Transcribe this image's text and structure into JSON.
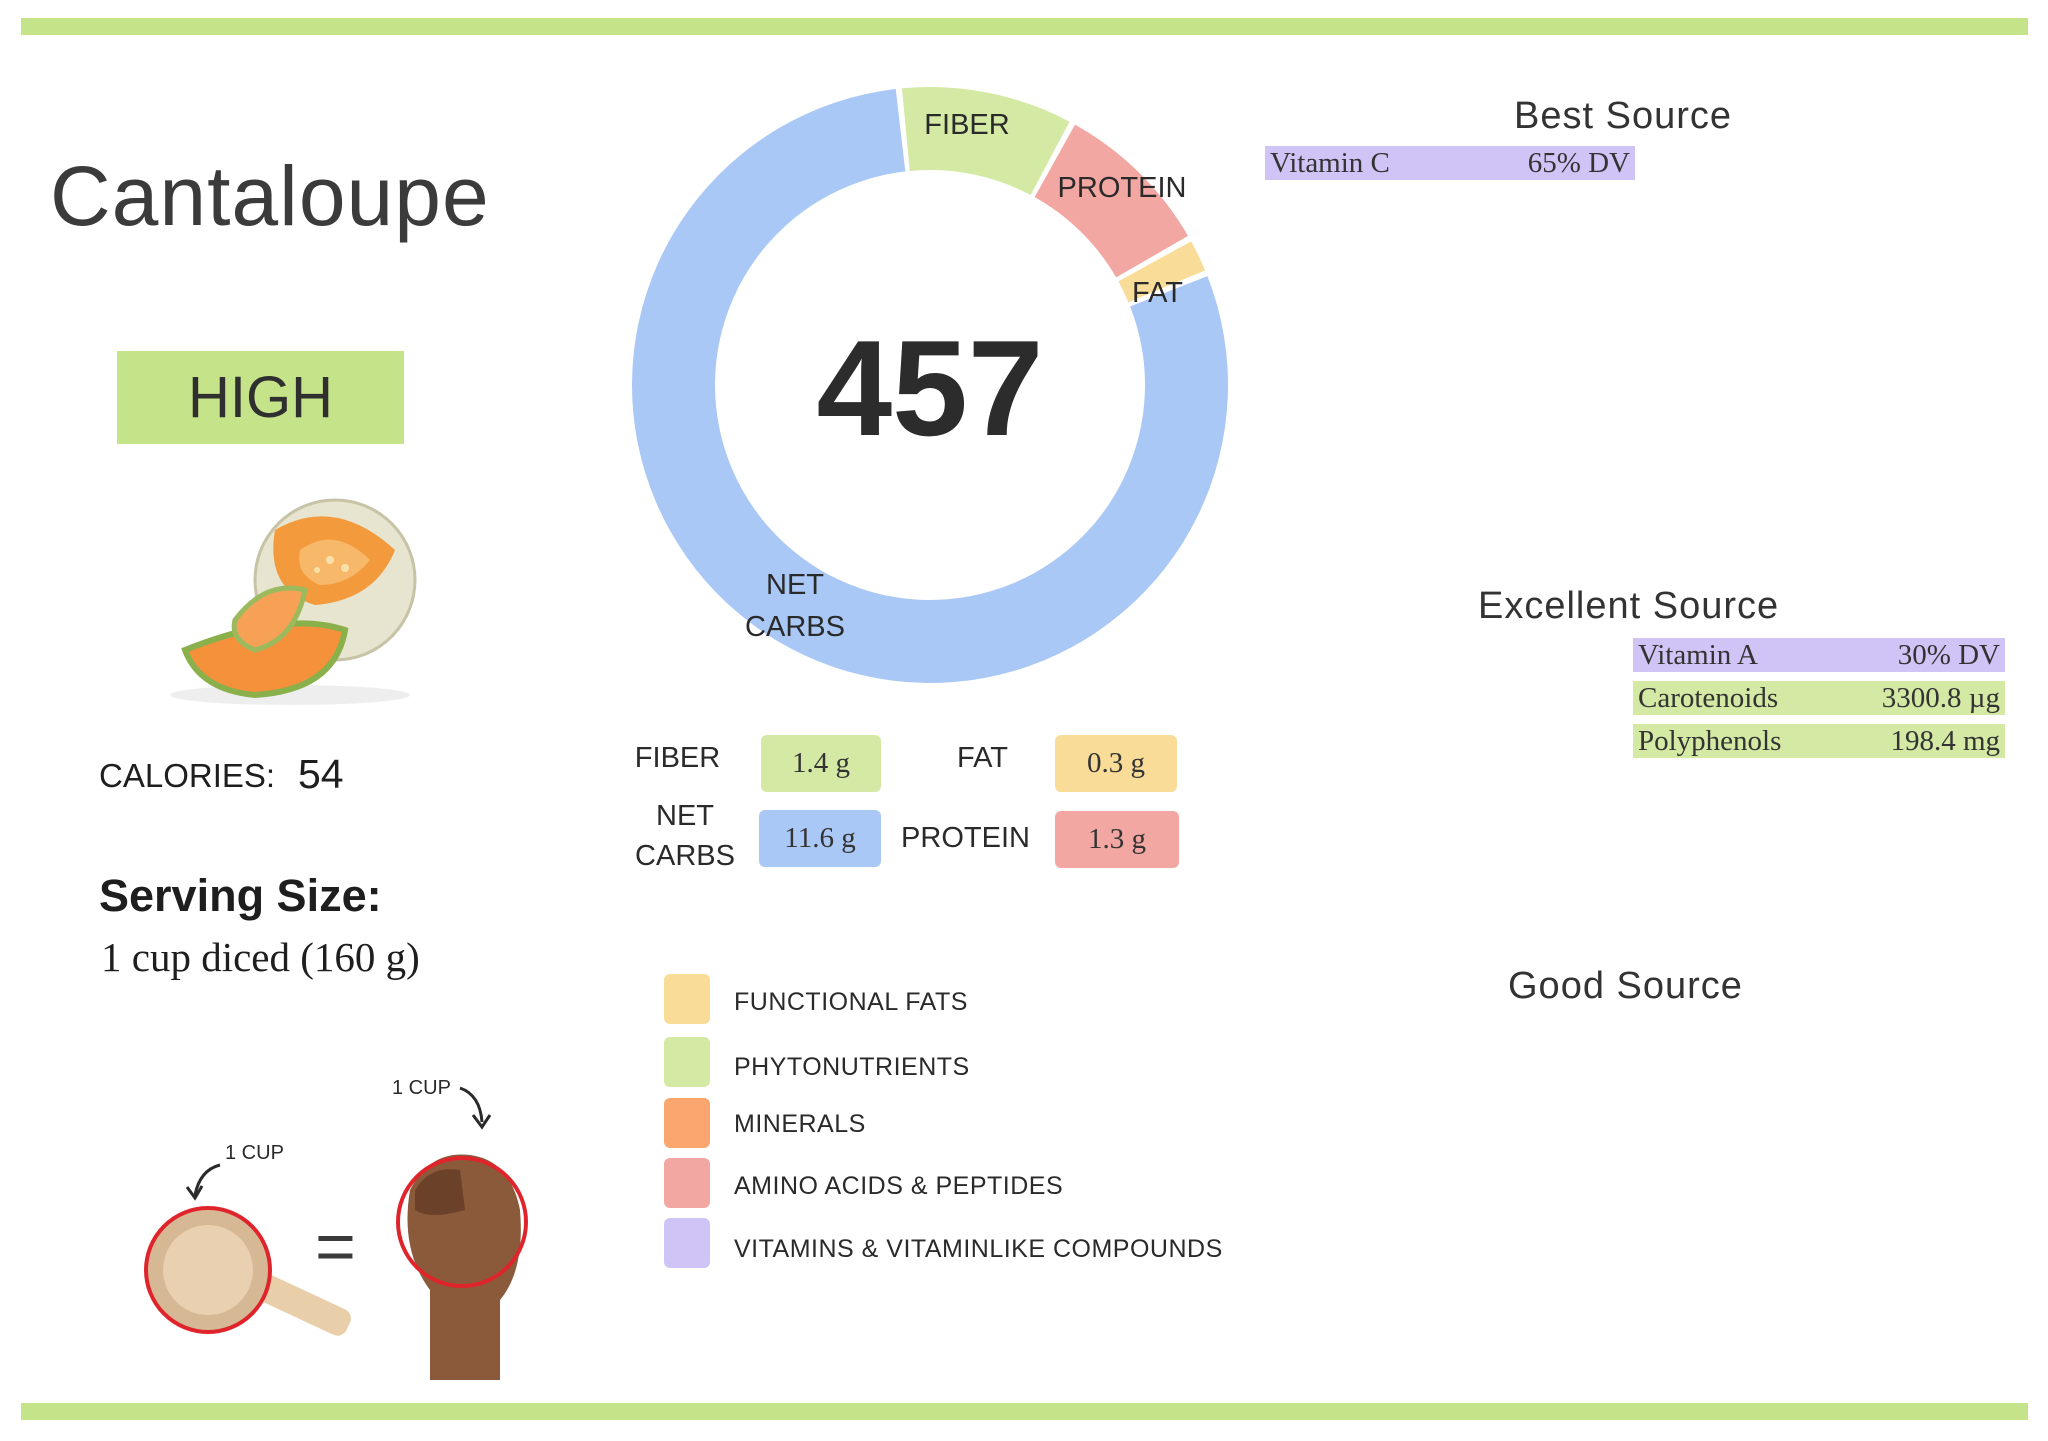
{
  "food": {
    "name": "Cantaloupe",
    "rating": "HIGH"
  },
  "calories": {
    "label": "CALORIES:",
    "value": "54"
  },
  "serving": {
    "title": "Serving Size:",
    "value": "1 cup diced (160 g)"
  },
  "serving_visual": {
    "cup_label": "1 CUP",
    "fist_label": "1 CUP",
    "equals": "="
  },
  "chart_data": {
    "type": "pie",
    "variant": "donut",
    "center_value": "457",
    "slices": [
      {
        "label": "FIBER",
        "value": 1.4,
        "unit": "g",
        "color": "#d3e9a4"
      },
      {
        "label": "PROTEIN",
        "value": 1.3,
        "unit": "g",
        "color": "#f2a7a3"
      },
      {
        "label": "FAT",
        "value": 0.3,
        "unit": "g",
        "color": "#f8dc97"
      },
      {
        "label": "NET CARBS",
        "value": 11.6,
        "unit": "g",
        "color": "#a9c8f5"
      }
    ]
  },
  "macros": {
    "fiber": {
      "label": "FIBER",
      "value": "1.4 g"
    },
    "fat": {
      "label": "FAT",
      "value": "0.3 g"
    },
    "net_carbs": {
      "label_line1": "NET",
      "label_line2": "CARBS",
      "value": "11.6 g"
    },
    "protein": {
      "label": "PROTEIN",
      "value": "1.3 g"
    }
  },
  "legend": [
    {
      "label": "FUNCTIONAL  FATS",
      "color": "#f8dc97"
    },
    {
      "label": "PHYTONUTRIENTS",
      "color": "#d3e9a4"
    },
    {
      "label": "MINERALS",
      "color": "#fba56f"
    },
    {
      "label": "AMINO ACIDS & PEPTIDES",
      "color": "#f2a7a3"
    },
    {
      "label": "VITAMINS & VITAMINLIKE COMPOUNDS",
      "color": "#cfc4f5"
    }
  ],
  "sources": {
    "best": {
      "title": "Best Source",
      "items": [
        {
          "name": "Vitamin C",
          "value": "65% DV",
          "color": "#cfc4f5"
        }
      ]
    },
    "excellent": {
      "title": "Excellent Source",
      "items": [
        {
          "name": "Vitamin A",
          "value": "30% DV",
          "color": "#cfc4f5"
        },
        {
          "name": "Carotenoids",
          "value": "3300.8 µg",
          "color": "#d3e9a4"
        },
        {
          "name": "Polyphenols",
          "value": "198.4 mg",
          "color": "#d3e9a4"
        }
      ]
    },
    "good": {
      "title": "Good Source",
      "items": []
    }
  },
  "colors": {
    "rule": "#c5e388",
    "rating_badge": "#c5e388",
    "cup_outline": "#e0242c"
  }
}
